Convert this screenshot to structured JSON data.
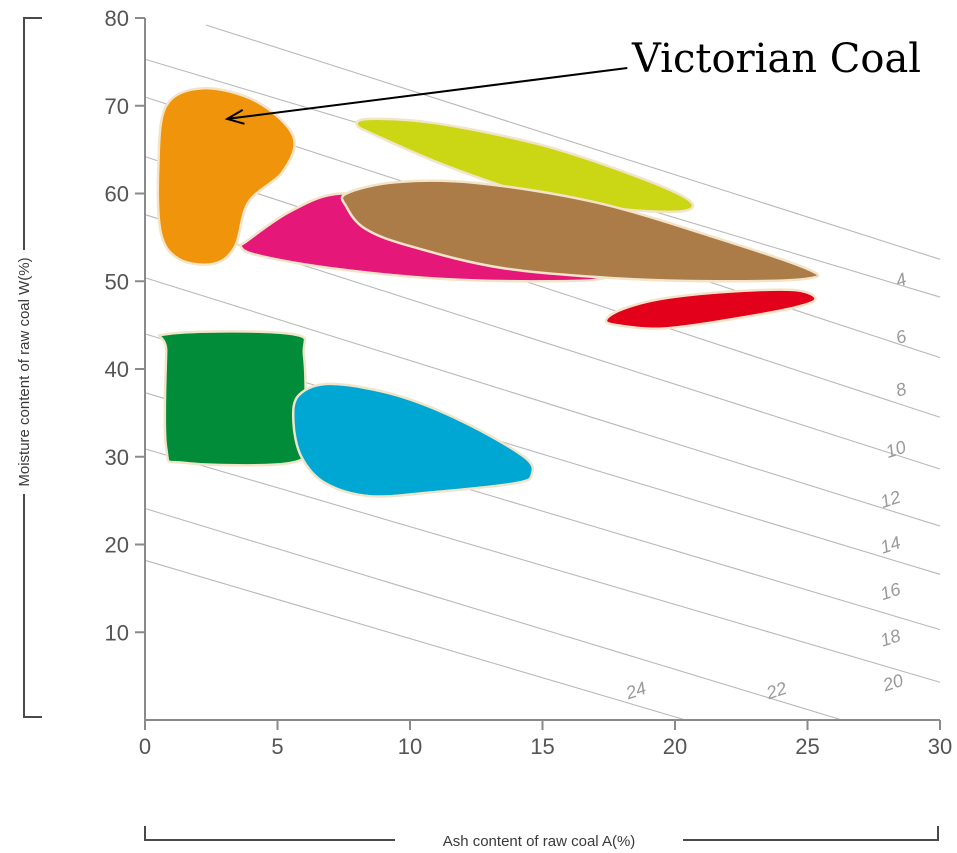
{
  "chart_data": {
    "type": "area",
    "title": "",
    "xlabel": "Ash content of raw coal A(%)",
    "ylabel": "Moisture content of raw coal W(%)",
    "xlim": [
      0,
      30
    ],
    "ylim": [
      0,
      80
    ],
    "x_ticks": [
      "0",
      "5",
      "10",
      "15",
      "20",
      "25",
      "30"
    ],
    "y_ticks": [
      "10",
      "20",
      "30",
      "40",
      "50",
      "60",
      "70",
      "80"
    ],
    "grid": false,
    "contour_lines": [
      {
        "label": "4",
        "from": [
          2.3,
          79.2
        ],
        "to": [
          30,
          52.5
        ]
      },
      {
        "label": "6",
        "from": [
          0,
          75.3
        ],
        "to": [
          30,
          48.2
        ]
      },
      {
        "label": "8",
        "from": [
          0,
          71.0
        ],
        "to": [
          30,
          41.3
        ]
      },
      {
        "label": "10",
        "from": [
          0,
          64.2
        ],
        "to": [
          30,
          34.5
        ]
      },
      {
        "label": "12",
        "from": [
          0,
          57.6
        ],
        "to": [
          30,
          28.6
        ]
      },
      {
        "label": "14",
        "from": [
          0,
          50.4
        ],
        "to": [
          30,
          22.1
        ]
      },
      {
        "label": "16",
        "from": [
          0,
          44.0
        ],
        "to": [
          30,
          16.6
        ]
      },
      {
        "label": "18",
        "from": [
          0,
          37.3
        ],
        "to": [
          30,
          10.3
        ]
      },
      {
        "label": "20",
        "from": [
          0,
          30.9
        ],
        "to": [
          30,
          4.3
        ]
      },
      {
        "label": "22",
        "from": [
          0,
          24.1
        ],
        "to": [
          26.3,
          0
        ]
      },
      {
        "label": "24",
        "from": [
          0,
          18.2
        ],
        "to": [
          20.4,
          0
        ]
      }
    ],
    "contour_label_positions": [
      {
        "label": "4",
        "x": 28.6,
        "y": 49.5
      },
      {
        "label": "6",
        "x": 28.6,
        "y": 43.0
      },
      {
        "label": "8",
        "x": 28.6,
        "y": 37.0
      },
      {
        "label": "10",
        "x": 28.4,
        "y": 30.2
      },
      {
        "label": "12",
        "x": 28.2,
        "y": 24.5
      },
      {
        "label": "14",
        "x": 28.2,
        "y": 19.3
      },
      {
        "label": "16",
        "x": 28.2,
        "y": 14.0
      },
      {
        "label": "18",
        "x": 28.2,
        "y": 8.7
      },
      {
        "label": "20",
        "x": 28.3,
        "y": 3.6
      },
      {
        "label": "22",
        "x": 23.9,
        "y": 2.7
      },
      {
        "label": "24",
        "x": 18.6,
        "y": 2.7
      }
    ],
    "regions": [
      {
        "color": "#f0940b",
        "points": [
          [
            0.8,
            70
          ],
          [
            2.2,
            72
          ],
          [
            4.2,
            70.5
          ],
          [
            5.6,
            66.5
          ],
          [
            5.2,
            62.5
          ],
          [
            3.9,
            59
          ],
          [
            3.4,
            54
          ],
          [
            2.6,
            52
          ],
          [
            1.3,
            52.5
          ],
          [
            0.6,
            55.5
          ],
          [
            0.5,
            63
          ]
        ]
      },
      {
        "color": "#cbd614",
        "points": [
          [
            8.5,
            68.5
          ],
          [
            11,
            68
          ],
          [
            15,
            65.5
          ],
          [
            18.5,
            62
          ],
          [
            20.5,
            59.3
          ],
          [
            20.3,
            58
          ],
          [
            18,
            58.2
          ],
          [
            15,
            59.5
          ],
          [
            11.5,
            63
          ],
          [
            8.8,
            66.5
          ],
          [
            8,
            67.8
          ]
        ]
      },
      {
        "color": "#e5187a",
        "points": [
          [
            3.8,
            54.5
          ],
          [
            5.5,
            58
          ],
          [
            7.4,
            60
          ],
          [
            10.5,
            59
          ],
          [
            16,
            56
          ],
          [
            17.5,
            52.5
          ],
          [
            17.4,
            50.4
          ],
          [
            15,
            50
          ],
          [
            11,
            50.3
          ],
          [
            7,
            51.5
          ],
          [
            4.2,
            53
          ],
          [
            3.6,
            54
          ]
        ]
      },
      {
        "color": "#ab7c47",
        "points": [
          [
            7.6,
            60
          ],
          [
            9.5,
            61.3
          ],
          [
            12.5,
            61.2
          ],
          [
            17,
            59
          ],
          [
            21.5,
            55
          ],
          [
            25,
            51.4
          ],
          [
            25,
            50.3
          ],
          [
            22,
            50
          ],
          [
            18,
            50.3
          ],
          [
            13.5,
            51.5
          ],
          [
            10,
            54
          ],
          [
            8.3,
            56
          ],
          [
            7.6,
            58.5
          ]
        ]
      },
      {
        "color": "#e2001a",
        "points": [
          [
            17.8,
            45
          ],
          [
            19.5,
            44.6
          ],
          [
            22,
            45.6
          ],
          [
            24.5,
            47
          ],
          [
            25.3,
            48
          ],
          [
            24.5,
            49
          ],
          [
            22,
            48.8
          ],
          [
            19.5,
            48
          ],
          [
            18,
            46.8
          ],
          [
            17.4,
            45.6
          ]
        ]
      },
      {
        "color": "#008c39",
        "points": [
          [
            0.9,
            44
          ],
          [
            5.5,
            44
          ],
          [
            6,
            41.5
          ],
          [
            6,
            32
          ],
          [
            5.5,
            29.3
          ],
          [
            1.5,
            29.3
          ],
          [
            0.8,
            31
          ],
          [
            0.8,
            42
          ]
        ]
      },
      {
        "color": "#00a7d2",
        "points": [
          [
            5.8,
            37
          ],
          [
            7,
            38.3
          ],
          [
            9.5,
            37
          ],
          [
            12,
            34
          ],
          [
            14.3,
            30
          ],
          [
            14.6,
            28
          ],
          [
            14,
            27
          ],
          [
            11,
            26
          ],
          [
            8.5,
            25.5
          ],
          [
            6.8,
            27
          ],
          [
            5.9,
            30
          ],
          [
            5.6,
            34
          ]
        ]
      }
    ]
  },
  "annotation": {
    "text": "Victorian Coal",
    "arrow_tip": [
      3.1,
      68.5
    ],
    "arrow_tail": [
      18.2,
      74.3
    ]
  }
}
